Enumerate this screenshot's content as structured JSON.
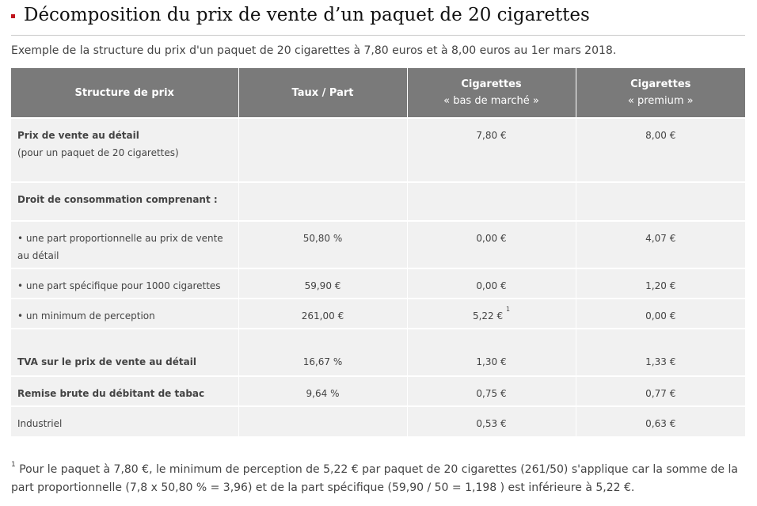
{
  "page": {
    "title": "Décomposition du prix de vente d’un paquet de 20 cigarettes",
    "subtitle": "Exemple de la structure du prix d'un paquet de 20 cigarettes à 7,80 euros et à 8,00 euros au 1er mars 2018."
  },
  "table": {
    "headers": {
      "col1": "Structure de prix",
      "col2": "Taux / Part",
      "col3_line1": "Cigarettes",
      "col3_line2": "« bas de marché »",
      "col4_line1": "Cigarettes",
      "col4_line2": "« premium »"
    },
    "rows": [
      {
        "label": "Prix de vente au détail",
        "label2": "(pour un paquet de 20 cigarettes)",
        "rate": "",
        "bas": "7,80 €",
        "premium": "8,00 €"
      },
      {
        "label": "Droit de consommation comprenant :",
        "rate": "",
        "bas": "",
        "premium": ""
      },
      {
        "label": "• une part proportionnelle au prix de vente au détail",
        "rate": "50,80 %",
        "bas": "0,00 €",
        "premium": "4,07 €"
      },
      {
        "label": "• une part spécifique pour 1000 cigarettes",
        "rate": "59,90 €",
        "bas": "0,00 €",
        "premium": "1,20 €"
      },
      {
        "label": "• un minimum de perception",
        "rate": "261,00 €",
        "bas": "5,22 €",
        "bas_note": "1",
        "premium": "0,00 €"
      },
      {
        "label": "TVA sur le prix de vente au détail",
        "rate": "16,67 %",
        "bas": "1,30 €",
        "premium": "1,33 €"
      },
      {
        "label": "Remise brute du débitant de tabac",
        "rate": "9,64 %",
        "bas": "0,75 €",
        "premium": "0,77 €"
      },
      {
        "label": "Industriel",
        "rate": "",
        "bas": "0,53 €",
        "premium": "0,63 €"
      }
    ]
  },
  "footnote": {
    "marker": "1",
    "text": "Pour le paquet à 7,80 €, le minimum de perception de 5,22 € par paquet de 20 cigarettes (261/50) s'applique car la somme de la part proportionnelle (7,8 x 50,80 % = 3,96) et de la part spécifique (59,90 / 50 = 1,198 ) est inférieure à 5,22 €."
  }
}
